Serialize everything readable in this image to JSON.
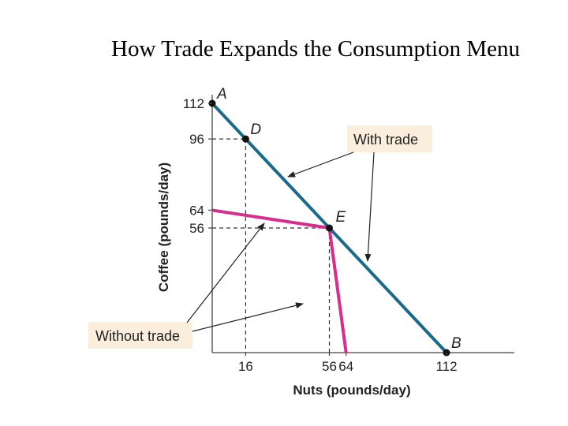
{
  "slide": {
    "title": "How Trade Expands the Consumption Menu"
  },
  "chart_data": {
    "type": "line",
    "title": "How Trade Expands the Consumption Menu",
    "xlabel": "Nuts (pounds/day)",
    "ylabel": "Coffee (pounds/day)",
    "xlim": [
      0,
      112
    ],
    "ylim": [
      0,
      112
    ],
    "x_ticks": [
      {
        "value": 16,
        "label": "16"
      },
      {
        "value": 56,
        "label": "56"
      },
      {
        "value": 64,
        "label": "64"
      },
      {
        "value": 112,
        "label": "112"
      }
    ],
    "y_ticks": [
      {
        "value": 112,
        "label": "112"
      },
      {
        "value": 96,
        "label": "96"
      },
      {
        "value": 64,
        "label": "64"
      },
      {
        "value": 56,
        "label": "56"
      }
    ],
    "series": [
      {
        "name": "With trade",
        "color": "#1b6a8a",
        "points": [
          [
            0,
            112
          ],
          [
            112,
            0
          ]
        ]
      },
      {
        "name": "Without trade",
        "color": "#d62d8f",
        "points": [
          [
            0,
            64
          ],
          [
            56,
            56
          ],
          [
            64,
            0
          ]
        ]
      }
    ],
    "points": [
      {
        "label": "A",
        "x": 0,
        "y": 112
      },
      {
        "label": "D",
        "x": 16,
        "y": 96
      },
      {
        "label": "E",
        "x": 56,
        "y": 56
      },
      {
        "label": "B",
        "x": 112,
        "y": 0
      }
    ],
    "guides": [
      {
        "x": 16,
        "y": 96
      },
      {
        "x": 56,
        "y": 56
      }
    ],
    "annotations": [
      {
        "text": "With trade",
        "target_series": "With trade"
      },
      {
        "text": "Without trade",
        "target_series": "Without trade"
      }
    ],
    "grid": false,
    "legend": "none"
  }
}
